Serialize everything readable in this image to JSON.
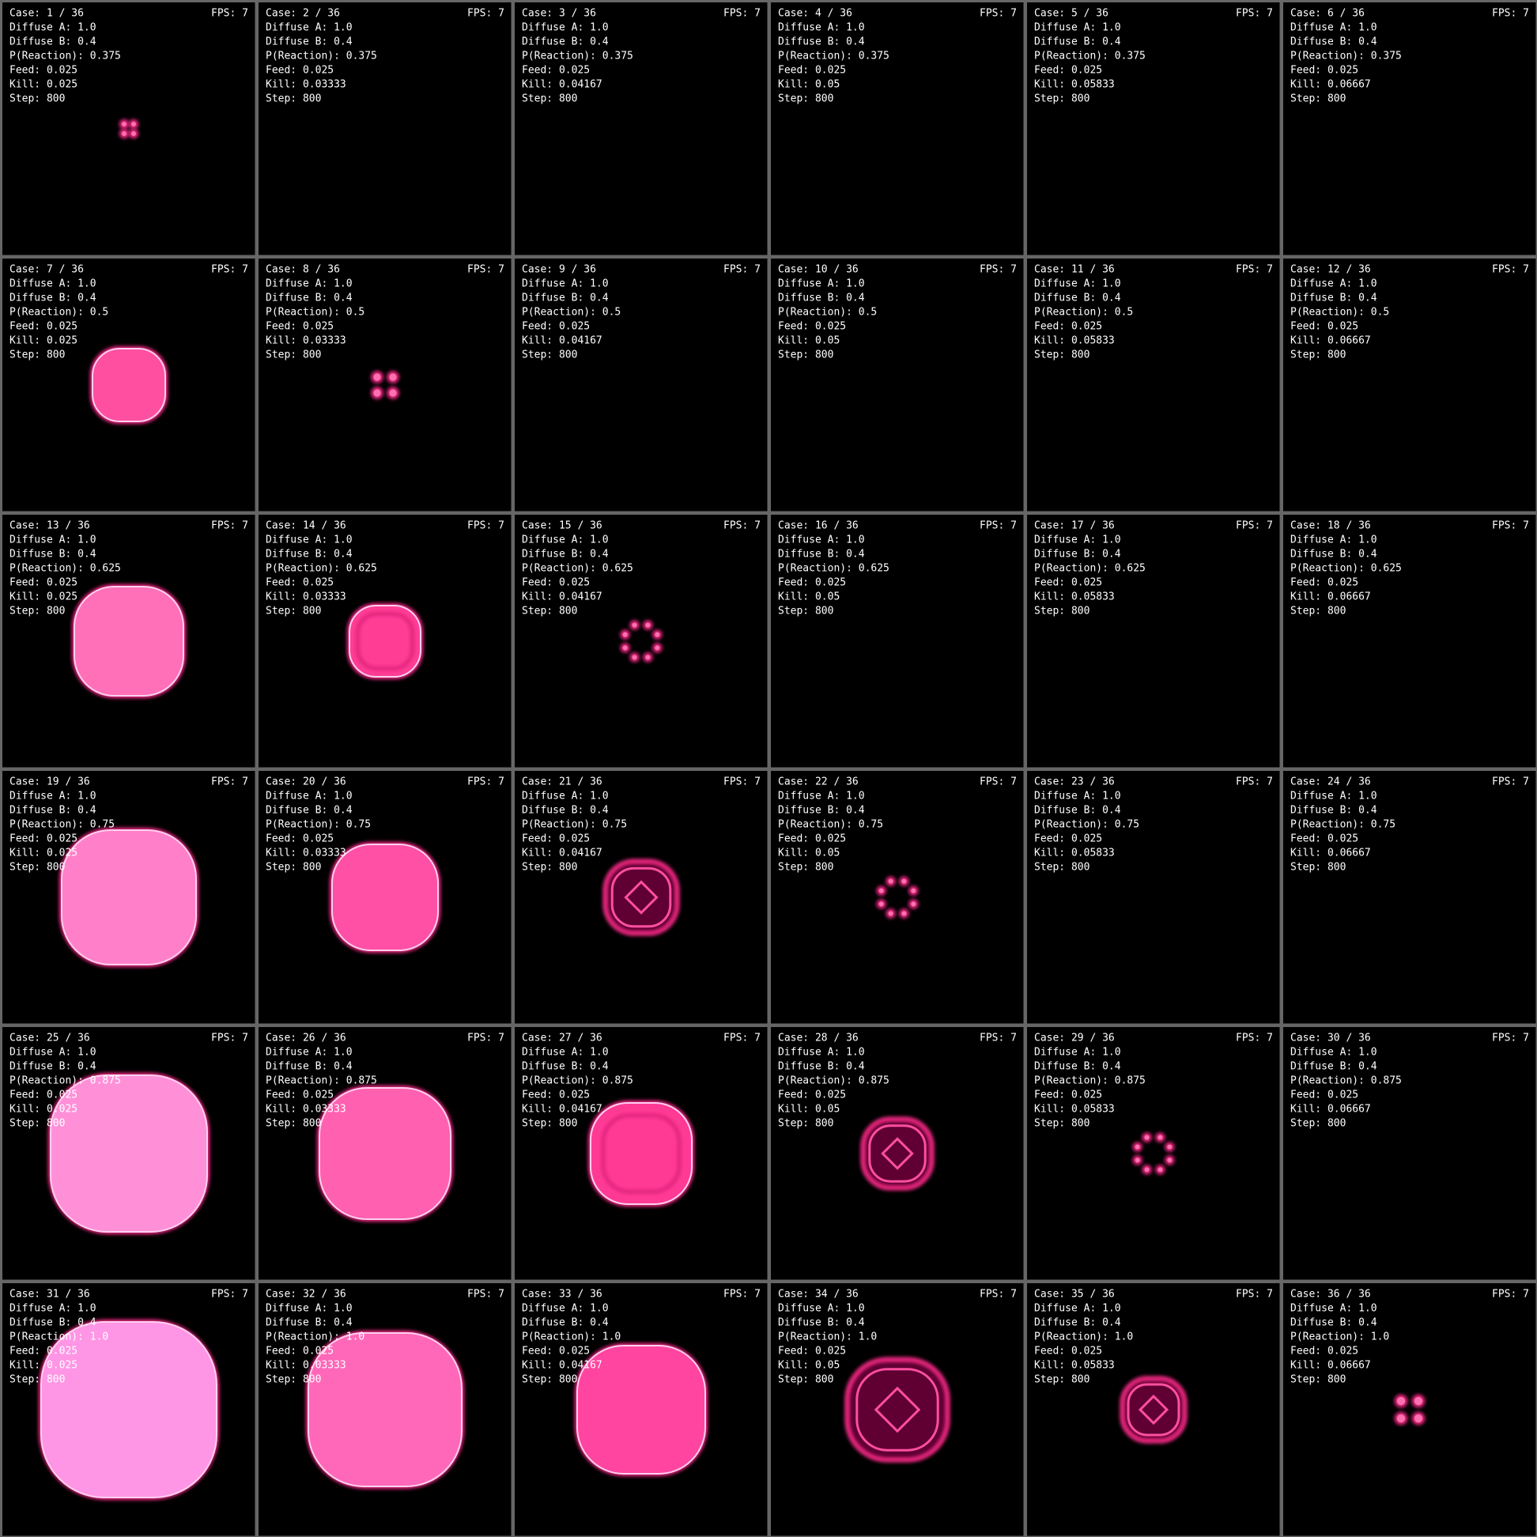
{
  "panels": [
    {
      "case": "Case: 1 / 36",
      "fps": "FPS: 7",
      "lines": [
        "Diffuse A: 1.0",
        "Diffuse B: 0.4",
        "P(Reaction): 0.375",
        "Feed: 0.025",
        "Kill: 0.025",
        "Step: 800"
      ]
    },
    {
      "case": "Case: 2 / 36",
      "fps": "FPS: 7",
      "lines": [
        "Diffuse A: 1.0",
        "Diffuse B: 0.4",
        "P(Reaction): 0.375",
        "Feed: 0.025",
        "Kill: 0.03333",
        "Step: 800"
      ]
    },
    {
      "case": "Case: 3 / 36",
      "fps": "FPS: 7",
      "lines": [
        "Diffuse A: 1.0",
        "Diffuse B: 0.4",
        "P(Reaction): 0.375",
        "Feed: 0.025",
        "Kill: 0.04167",
        "Step: 800"
      ]
    },
    {
      "case": "Case: 4 / 36",
      "fps": "FPS: 7",
      "lines": [
        "Diffuse A: 1.0",
        "Diffuse B: 0.4",
        "P(Reaction): 0.375",
        "Feed: 0.025",
        "Kill: 0.05",
        "Step: 800"
      ]
    },
    {
      "case": "Case: 5 / 36",
      "fps": "FPS: 7",
      "lines": [
        "Diffuse A: 1.0",
        "Diffuse B: 0.4",
        "P(Reaction): 0.375",
        "Feed: 0.025",
        "Kill: 0.05833",
        "Step: 800"
      ]
    },
    {
      "case": "Case: 6 / 36",
      "fps": "FPS: 7",
      "lines": [
        "Diffuse A: 1.0",
        "Diffuse B: 0.4",
        "P(Reaction): 0.375",
        "Feed: 0.025",
        "Kill: 0.06667",
        "Step: 800"
      ]
    },
    {
      "case": "Case: 7 / 36",
      "fps": "FPS: 7",
      "lines": [
        "Diffuse A: 1.0",
        "Diffuse B: 0.4",
        "P(Reaction): 0.5",
        "Feed: 0.025",
        "Kill: 0.025",
        "Step: 800"
      ]
    },
    {
      "case": "Case: 8 / 36",
      "fps": "FPS: 7",
      "lines": [
        "Diffuse A: 1.0",
        "Diffuse B: 0.4",
        "P(Reaction): 0.5",
        "Feed: 0.025",
        "Kill: 0.03333",
        "Step: 800"
      ]
    },
    {
      "case": "Case: 9 / 36",
      "fps": "FPS: 7",
      "lines": [
        "Diffuse A: 1.0",
        "Diffuse B: 0.4",
        "P(Reaction): 0.5",
        "Feed: 0.025",
        "Kill: 0.04167",
        "Step: 800"
      ]
    },
    {
      "case": "Case: 10 / 36",
      "fps": "FPS: 7",
      "lines": [
        "Diffuse A: 1.0",
        "Diffuse B: 0.4",
        "P(Reaction): 0.5",
        "Feed: 0.025",
        "Kill: 0.05",
        "Step: 800"
      ]
    },
    {
      "case": "Case: 11 / 36",
      "fps": "FPS: 7",
      "lines": [
        "Diffuse A: 1.0",
        "Diffuse B: 0.4",
        "P(Reaction): 0.5",
        "Feed: 0.025",
        "Kill: 0.05833",
        "Step: 800"
      ]
    },
    {
      "case": "Case: 12 / 36",
      "fps": "FPS: 7",
      "lines": [
        "Diffuse A: 1.0",
        "Diffuse B: 0.4",
        "P(Reaction): 0.5",
        "Feed: 0.025",
        "Kill: 0.06667",
        "Step: 800"
      ]
    },
    {
      "case": "Case: 13 / 36",
      "fps": "FPS: 7",
      "lines": [
        "Diffuse A: 1.0",
        "Diffuse B: 0.4",
        "P(Reaction): 0.625",
        "Feed: 0.025",
        "Kill: 0.025",
        "Step: 800"
      ]
    },
    {
      "case": "Case: 14 / 36",
      "fps": "FPS: 7",
      "lines": [
        "Diffuse A: 1.0",
        "Diffuse B: 0.4",
        "P(Reaction): 0.625",
        "Feed: 0.025",
        "Kill: 0.03333",
        "Step: 800"
      ]
    },
    {
      "case": "Case: 15 / 36",
      "fps": "FPS: 7",
      "lines": [
        "Diffuse A: 1.0",
        "Diffuse B: 0.4",
        "P(Reaction): 0.625",
        "Feed: 0.025",
        "Kill: 0.04167",
        "Step: 800"
      ]
    },
    {
      "case": "Case: 16 / 36",
      "fps": "FPS: 7",
      "lines": [
        "Diffuse A: 1.0",
        "Diffuse B: 0.4",
        "P(Reaction): 0.625",
        "Feed: 0.025",
        "Kill: 0.05",
        "Step: 800"
      ]
    },
    {
      "case": "Case: 17 / 36",
      "fps": "FPS: 7",
      "lines": [
        "Diffuse A: 1.0",
        "Diffuse B: 0.4",
        "P(Reaction): 0.625",
        "Feed: 0.025",
        "Kill: 0.05833",
        "Step: 800"
      ]
    },
    {
      "case": "Case: 18 / 36",
      "fps": "FPS: 7",
      "lines": [
        "Diffuse A: 1.0",
        "Diffuse B: 0.4",
        "P(Reaction): 0.625",
        "Feed: 0.025",
        "Kill: 0.06667",
        "Step: 800"
      ]
    },
    {
      "case": "Case: 19 / 36",
      "fps": "FPS: 7",
      "lines": [
        "Diffuse A: 1.0",
        "Diffuse B: 0.4",
        "P(Reaction): 0.75",
        "Feed: 0.025",
        "Kill: 0.025",
        "Step: 800"
      ]
    },
    {
      "case": "Case: 20 / 36",
      "fps": "FPS: 7",
      "lines": [
        "Diffuse A: 1.0",
        "Diffuse B: 0.4",
        "P(Reaction): 0.75",
        "Feed: 0.025",
        "Kill: 0.03333",
        "Step: 800"
      ]
    },
    {
      "case": "Case: 21 / 36",
      "fps": "FPS: 7",
      "lines": [
        "Diffuse A: 1.0",
        "Diffuse B: 0.4",
        "P(Reaction): 0.75",
        "Feed: 0.025",
        "Kill: 0.04167",
        "Step: 800"
      ]
    },
    {
      "case": "Case: 22 / 36",
      "fps": "FPS: 7",
      "lines": [
        "Diffuse A: 1.0",
        "Diffuse B: 0.4",
        "P(Reaction): 0.75",
        "Feed: 0.025",
        "Kill: 0.05",
        "Step: 800"
      ]
    },
    {
      "case": "Case: 23 / 36",
      "fps": "FPS: 7",
      "lines": [
        "Diffuse A: 1.0",
        "Diffuse B: 0.4",
        "P(Reaction): 0.75",
        "Feed: 0.025",
        "Kill: 0.05833",
        "Step: 800"
      ]
    },
    {
      "case": "Case: 24 / 36",
      "fps": "FPS: 7",
      "lines": [
        "Diffuse A: 1.0",
        "Diffuse B: 0.4",
        "P(Reaction): 0.75",
        "Feed: 0.025",
        "Kill: 0.06667",
        "Step: 800"
      ]
    },
    {
      "case": "Case: 25 / 36",
      "fps": "FPS: 7",
      "lines": [
        "Diffuse A: 1.0",
        "Diffuse B: 0.4",
        "P(Reaction): 0.875",
        "Feed: 0.025",
        "Kill: 0.025",
        "Step: 800"
      ]
    },
    {
      "case": "Case: 26 / 36",
      "fps": "FPS: 7",
      "lines": [
        "Diffuse A: 1.0",
        "Diffuse B: 0.4",
        "P(Reaction): 0.875",
        "Feed: 0.025",
        "Kill: 0.03333",
        "Step: 800"
      ]
    },
    {
      "case": "Case: 27 / 36",
      "fps": "FPS: 7",
      "lines": [
        "Diffuse A: 1.0",
        "Diffuse B: 0.4",
        "P(Reaction): 0.875",
        "Feed: 0.025",
        "Kill: 0.04167",
        "Step: 800"
      ]
    },
    {
      "case": "Case: 28 / 36",
      "fps": "FPS: 7",
      "lines": [
        "Diffuse A: 1.0",
        "Diffuse B: 0.4",
        "P(Reaction): 0.875",
        "Feed: 0.025",
        "Kill: 0.05",
        "Step: 800"
      ]
    },
    {
      "case": "Case: 29 / 36",
      "fps": "FPS: 7",
      "lines": [
        "Diffuse A: 1.0",
        "Diffuse B: 0.4",
        "P(Reaction): 0.875",
        "Feed: 0.025",
        "Kill: 0.05833",
        "Step: 800"
      ]
    },
    {
      "case": "Case: 30 / 36",
      "fps": "FPS: 7",
      "lines": [
        "Diffuse A: 1.0",
        "Diffuse B: 0.4",
        "P(Reaction): 0.875",
        "Feed: 0.025",
        "Kill: 0.06667",
        "Step: 800"
      ]
    },
    {
      "case": "Case: 31 / 36",
      "fps": "FPS: 7",
      "lines": [
        "Diffuse A: 1.0",
        "Diffuse B: 0.4",
        "P(Reaction): 1.0",
        "Feed: 0.025",
        "Kill: 0.025",
        "Step: 800"
      ]
    },
    {
      "case": "Case: 32 / 36",
      "fps": "FPS: 7",
      "lines": [
        "Diffuse A: 1.0",
        "Diffuse B: 0.4",
        "P(Reaction): 1.0",
        "Feed: 0.025",
        "Kill: 0.03333",
        "Step: 800"
      ]
    },
    {
      "case": "Case: 33 / 36",
      "fps": "FPS: 7",
      "lines": [
        "Diffuse A: 1.0",
        "Diffuse B: 0.4",
        "P(Reaction): 1.0",
        "Feed: 0.025",
        "Kill: 0.04167",
        "Step: 800"
      ]
    },
    {
      "case": "Case: 34 / 36",
      "fps": "FPS: 7",
      "lines": [
        "Diffuse A: 1.0",
        "Diffuse B: 0.4",
        "P(Reaction): 1.0",
        "Feed: 0.025",
        "Kill: 0.05",
        "Step: 800"
      ]
    },
    {
      "case": "Case: 35 / 36",
      "fps": "FPS: 7",
      "lines": [
        "Diffuse A: 1.0",
        "Diffuse B: 0.4",
        "P(Reaction): 1.0",
        "Feed: 0.025",
        "Kill: 0.05833",
        "Step: 800"
      ]
    },
    {
      "case": "Case: 36 / 36",
      "fps": "FPS: 7",
      "lines": [
        "Diffuse A: 1.0",
        "Diffuse B: 0.4",
        "P(Reaction): 1.0",
        "Feed: 0.025",
        "Kill: 0.06667",
        "Step: 800"
      ]
    }
  ]
}
